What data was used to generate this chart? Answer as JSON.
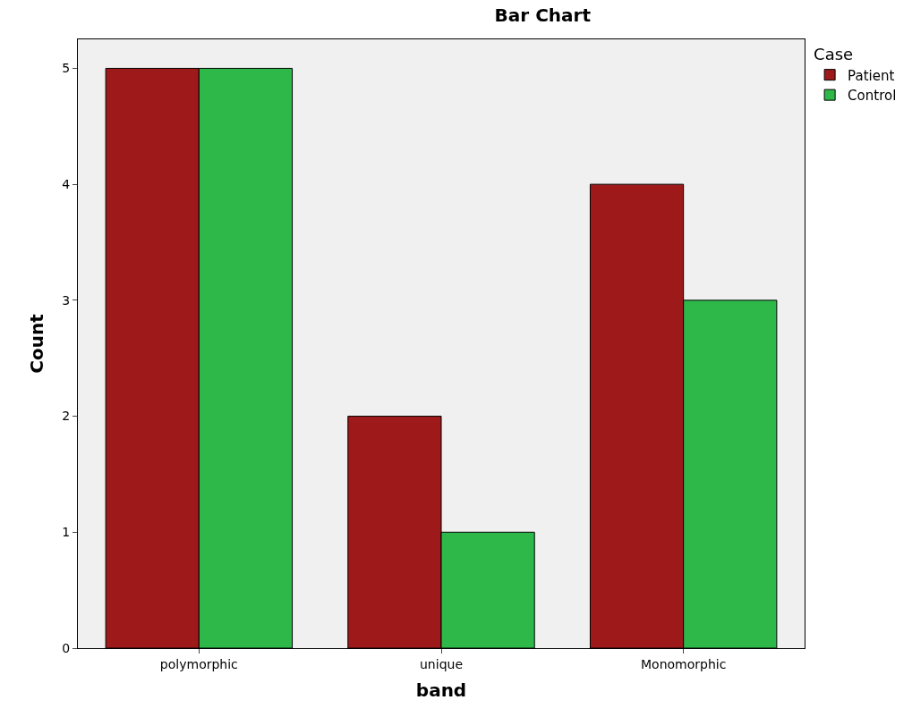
{
  "chart_data": {
    "type": "bar",
    "title": "Bar Chart",
    "xlabel": "band",
    "ylabel": "Count",
    "legend_title": "Case",
    "categories": [
      "polymorphic",
      "unique",
      "Monomorphic"
    ],
    "series": [
      {
        "name": "Patient",
        "color": "#9e1a1a",
        "values": [
          5,
          2,
          4
        ]
      },
      {
        "name": "Control",
        "color": "#2fb84a",
        "values": [
          5,
          1,
          3
        ]
      }
    ],
    "ylim": [
      0,
      5.25
    ],
    "yticks": [
      0,
      1,
      2,
      3,
      4,
      5
    ],
    "grid": false,
    "legend": "top right"
  }
}
